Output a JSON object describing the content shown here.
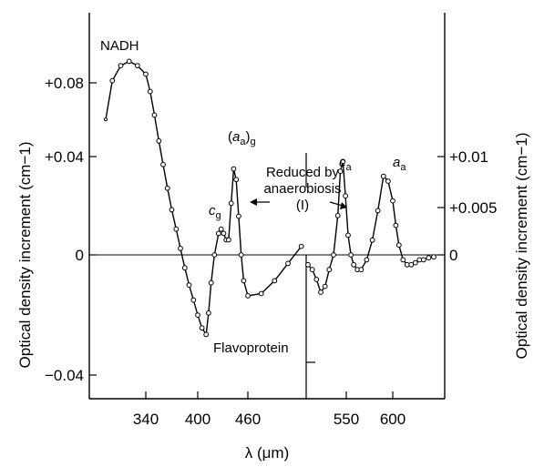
{
  "chart_data": {
    "type": "line",
    "xlabel": "λ (μm)",
    "ylabel_left": "Optical density increment (cm−1)",
    "ylabel_right": "Optical density increment (cm−1)",
    "x_ticks": [
      "340",
      "400",
      "460",
      "550",
      "600"
    ],
    "y_ticks_left": [
      "+0.08",
      "+0.04",
      "0",
      "−0.04"
    ],
    "y_ticks_right": [
      "+0.01",
      "+0.005",
      "0"
    ],
    "grid": false,
    "annotations": {
      "nadh": "NADH",
      "cg_main": "c",
      "cg_sub": "g",
      "aag_paren_open": "(",
      "aag_a": "a",
      "aag_a_sub": "a",
      "aag_paren_close": ")",
      "aag_g_sub": "g",
      "reduced_line1": "Reduced by",
      "reduced_line2": "anaerobiosis",
      "reduced_line3": "(I)",
      "ca_main": "c",
      "ca_sub": "a",
      "aa_main": "a",
      "aa_sub": "a",
      "flavoprotein": "Flavoprotein"
    },
    "series": [
      {
        "axis": "left",
        "x": [
          316,
          320,
          325,
          330,
          335,
          340,
          345,
          350,
          355,
          360,
          365,
          370,
          375,
          380,
          385,
          390,
          395,
          400,
          405,
          410,
          413,
          416,
          420,
          425,
          428,
          431,
          434,
          437,
          440,
          443,
          446,
          449,
          452,
          455,
          460,
          470,
          480,
          490,
          500
        ],
        "y": [
          0.063,
          0.081,
          0.088,
          0.09,
          0.088,
          0.084,
          0.076,
          0.065,
          0.053,
          0.042,
          0.031,
          0.021,
          0.012,
          0.003,
          -0.006,
          -0.014,
          -0.021,
          -0.028,
          -0.034,
          -0.037,
          -0.027,
          -0.013,
          0.0,
          0.01,
          0.012,
          0.01,
          0.007,
          0.007,
          0.024,
          0.04,
          0.035,
          0.018,
          0.0,
          -0.012,
          -0.019,
          -0.018,
          -0.012,
          -0.004,
          0.004
        ]
      },
      {
        "axis": "right",
        "x": [
          505,
          510,
          515,
          520,
          525,
          530,
          535,
          540,
          543,
          546,
          549,
          552,
          555,
          558,
          562,
          566,
          572,
          578,
          584,
          590,
          595,
          600,
          603,
          606,
          610,
          614,
          618,
          622,
          626,
          630,
          635,
          640
        ],
        "y": [
          -0.001,
          -0.0015,
          -0.0025,
          -0.0038,
          -0.0032,
          -0.0015,
          0.0,
          0.004,
          0.0085,
          0.0095,
          0.006,
          0.002,
          0.0,
          -0.001,
          -0.0015,
          -0.0015,
          -0.0005,
          0.0015,
          0.0045,
          0.008,
          0.0075,
          0.0055,
          0.003,
          0.001,
          -0.0005,
          -0.001,
          -0.001,
          -0.0008,
          -0.0005,
          -0.0005,
          -0.0003,
          -0.0002
        ]
      }
    ]
  }
}
